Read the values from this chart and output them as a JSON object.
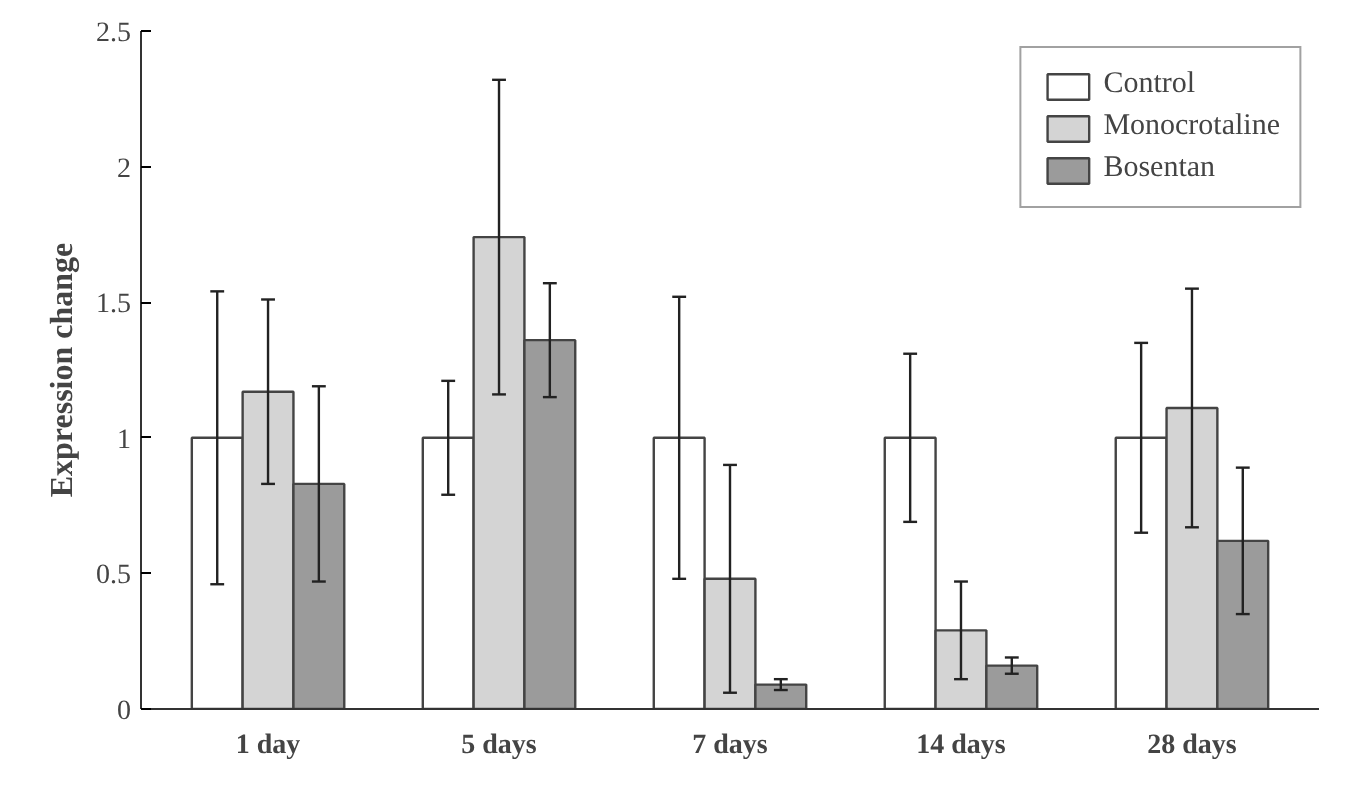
{
  "chart_data": {
    "type": "bar",
    "ylabel": "Expression change",
    "categories": [
      "1 day",
      "5 days",
      "7 days",
      "14 days",
      "28 days"
    ],
    "series": [
      {
        "name": "Control",
        "color": "#ffffff",
        "values": [
          1,
          1,
          1,
          1,
          1
        ],
        "errors": [
          0.54,
          0.21,
          0.52,
          0.31,
          0.35
        ]
      },
      {
        "name": "Monocrotaline",
        "color": "#d4d4d4",
        "values": [
          1.17,
          1.74,
          0.48,
          0.29,
          1.11
        ],
        "errors": [
          0.34,
          0.58,
          0.42,
          0.18,
          0.44
        ]
      },
      {
        "name": "Bosentan",
        "color": "#9b9b9b",
        "values": [
          0.83,
          1.36,
          0.09,
          0.16,
          0.62
        ],
        "errors": [
          0.36,
          0.21,
          0.02,
          0.03,
          0.27
        ]
      }
    ],
    "ylim": [
      0,
      2.5
    ],
    "yticks": [
      0,
      0.5,
      1,
      1.5,
      2,
      2.5
    ],
    "grid": false,
    "legend": "top right"
  }
}
